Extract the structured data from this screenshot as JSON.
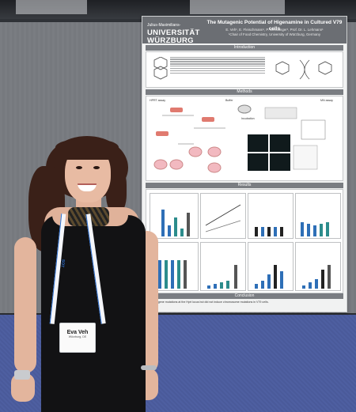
{
  "poster": {
    "logo_top": "Julius-Maximilians-",
    "logo_main": "UNIVERSITÄT WÜRZBURG",
    "title": "The Mutagenic Potential of Higenamine in Cultured V79 cells",
    "authors": "E. Veh¹, E. Fleischmann¹, P. Weissinger¹, Prof. Dr. L. Lehmann¹",
    "affiliation": "¹Chair of Food Chemistry, University of Würzburg, Germany",
    "sections": {
      "introduction": "Introduction",
      "methods": "Methods",
      "results": "Results",
      "conclusion": "Conclusion"
    },
    "methods_labels": [
      "HPRT assay",
      "Buffer",
      "Incubation",
      "MN assay"
    ],
    "conclusion_text": "Induced gene mutations at the Hprt locus but did not induce chromosome mutations in V79 cells."
  },
  "badge": {
    "name": "Eva Veh",
    "affiliation": "Würzburg, DE"
  },
  "lanyard_text": "SOT",
  "colors": {
    "poster_header": "#6b6e73",
    "chart_blue": "#2e6fb7",
    "chart_teal": "#2c8c8c",
    "floor": "#4a5a9a",
    "dress": "#121214"
  }
}
